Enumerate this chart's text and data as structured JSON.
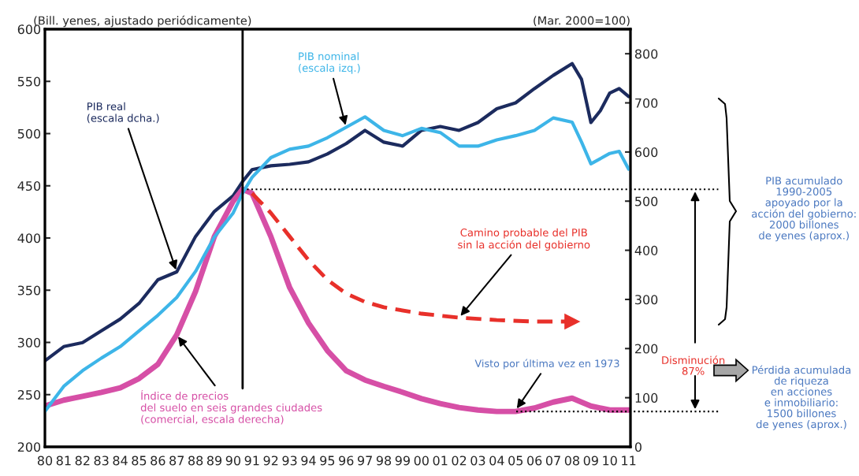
{
  "chart_data": {
    "type": "line",
    "ylabel": "(Bill. yenes, ajustado periódicamente)",
    "y2label": "(Mar. 2000=100)",
    "xlim": [
      1980,
      2011.1
    ],
    "xticks": [
      {
        "value": 1980,
        "label": "80"
      },
      {
        "value": 1981,
        "label": "81"
      },
      {
        "value": 1982,
        "label": "82"
      },
      {
        "value": 1983,
        "label": "83"
      },
      {
        "value": 1984,
        "label": "84"
      },
      {
        "value": 1985,
        "label": "85"
      },
      {
        "value": 1986,
        "label": "86"
      },
      {
        "value": 1987,
        "label": "87"
      },
      {
        "value": 1988,
        "label": "88"
      },
      {
        "value": 1989,
        "label": "89"
      },
      {
        "value": 1990,
        "label": "90"
      },
      {
        "value": 1991,
        "label": "91"
      },
      {
        "value": 1992,
        "label": "92"
      },
      {
        "value": 1993,
        "label": "93"
      },
      {
        "value": 1994,
        "label": "94"
      },
      {
        "value": 1995,
        "label": "95"
      },
      {
        "value": 1996,
        "label": "96"
      },
      {
        "value": 1997,
        "label": "97"
      },
      {
        "value": 1998,
        "label": "98"
      },
      {
        "value": 1999,
        "label": "99"
      },
      {
        "value": 2000,
        "label": "00"
      },
      {
        "value": 2001,
        "label": "01"
      },
      {
        "value": 2002,
        "label": "02"
      },
      {
        "value": 2003,
        "label": "03"
      },
      {
        "value": 2004,
        "label": "04"
      },
      {
        "value": 2005,
        "label": "05"
      },
      {
        "value": 2006,
        "label": "06"
      },
      {
        "value": 2007,
        "label": "07"
      },
      {
        "value": 2008,
        "label": "08"
      },
      {
        "value": 2009,
        "label": "09"
      },
      {
        "value": 2010,
        "label": "10"
      },
      {
        "value": 2011,
        "label": "11"
      }
    ],
    "ylim": [
      200,
      600
    ],
    "yticks": [
      200,
      250,
      300,
      350,
      400,
      450,
      500,
      550,
      600
    ],
    "y2lim": [
      0,
      850
    ],
    "y2ticks": [
      0,
      100,
      200,
      300,
      400,
      500,
      600,
      700,
      800
    ],
    "series": [
      {
        "name": "PIB real\n(escala dcha.)",
        "axis": "y2",
        "color": "#1c2b5e",
        "x": [
          1980,
          1981,
          1982,
          1983,
          1984,
          1985,
          1986,
          1987,
          1988,
          1989,
          1990,
          1990.5,
          1991,
          1992,
          1993,
          1994,
          1995,
          1996,
          1997,
          1998,
          1999,
          2000,
          2001,
          2002,
          2003,
          2004,
          2005,
          2006,
          2007,
          2008,
          2008.5,
          2009,
          2009.5,
          2010,
          2010.5,
          2011
        ],
        "values": [
          175,
          204,
          212,
          236,
          260,
          292,
          340,
          356,
          428,
          479,
          511,
          540,
          564,
          572,
          575,
          580,
          596,
          617,
          644,
          620,
          612,
          644,
          652,
          644,
          660,
          688,
          700,
          729,
          756,
          780,
          748,
          660,
          684,
          720,
          729,
          713
        ]
      },
      {
        "name": "PIB nominal\n(escala izq.)",
        "color": "#3db5e8",
        "x": [
          1980,
          1981,
          1982,
          1983,
          1984,
          1985,
          1986,
          1987,
          1988,
          1989,
          1990,
          1990.5,
          1991,
          1992,
          1993,
          1994,
          1995,
          1996,
          1997,
          1998,
          1999,
          2000,
          2001,
          2002,
          2003,
          2004,
          2005,
          2006,
          2007,
          2008,
          2008.5,
          2009,
          2010,
          2010.5,
          2011
        ],
        "values": [
          234,
          258,
          273,
          285,
          296,
          311,
          326,
          343,
          368,
          401,
          424,
          443,
          458,
          477,
          485,
          488,
          496,
          506,
          516,
          503,
          498,
          505,
          501,
          488,
          488,
          494,
          498,
          503,
          515,
          511,
          492,
          471,
          481,
          483,
          466
        ]
      },
      {
        "name": "Índice de precios\ndel suelo en seis grandes ciudades\n(comercial, escala derecha)",
        "axis": "y2",
        "color": "#d64fa6",
        "x": [
          1980,
          1981,
          1982,
          1983,
          1984,
          1985,
          1986,
          1987,
          1988,
          1989,
          1990,
          1990.5,
          1991,
          1992,
          1993,
          1994,
          1995,
          1996,
          1997,
          1998,
          1999,
          2000,
          2001,
          2002,
          2003,
          2004,
          2005,
          2006,
          2007,
          2008,
          2009,
          2010,
          2011
        ],
        "values": [
          83,
          95,
          103,
          111,
          120,
          139,
          168,
          228,
          316,
          428,
          500,
          524,
          516,
          428,
          324,
          252,
          196,
          155,
          136,
          123,
          111,
          98,
          88,
          80,
          75,
          72,
          72,
          79,
          91,
          99,
          83,
          75,
          75
        ]
      },
      {
        "name": "Camino probable del PIB\nsin la acción del gobierno",
        "axis": "y2",
        "color": "#e8302a",
        "line_style": "dashed",
        "x": [
          1991,
          1992,
          1993,
          1994,
          1995,
          1996,
          1997,
          1998,
          2000,
          2002,
          2004,
          2006,
          2008
        ],
        "values": [
          516,
          476,
          428,
          380,
          340,
          312,
          295,
          284,
          271,
          263,
          258,
          255,
          255
        ]
      }
    ],
    "ref_lines": [
      {
        "axis": "x",
        "value": 1990.5,
        "color": "#000000",
        "line_style": "solid"
      },
      {
        "axis": "y2",
        "value": 524,
        "color": "#000000",
        "line_style": "dotted"
      },
      {
        "axis": "y2",
        "value": 72,
        "color": "#000000",
        "line_style": "dotted"
      }
    ],
    "annotations": [
      {
        "text": "Visto por última vez en 1973",
        "x": 2005,
        "y": 235
      },
      "PIB acumulado\n1990-2005\napoyado por la\nacción del gobierno:\n2000 billones\nde yenes (aprox.)",
      "Disminución\n87%",
      "Pérdida acumulada\nde riqueza\nen acciones\ne inmobiliario:\n1500 billones\nde yenes (aprox.)"
    ],
    "grid": false,
    "legend": false
  }
}
